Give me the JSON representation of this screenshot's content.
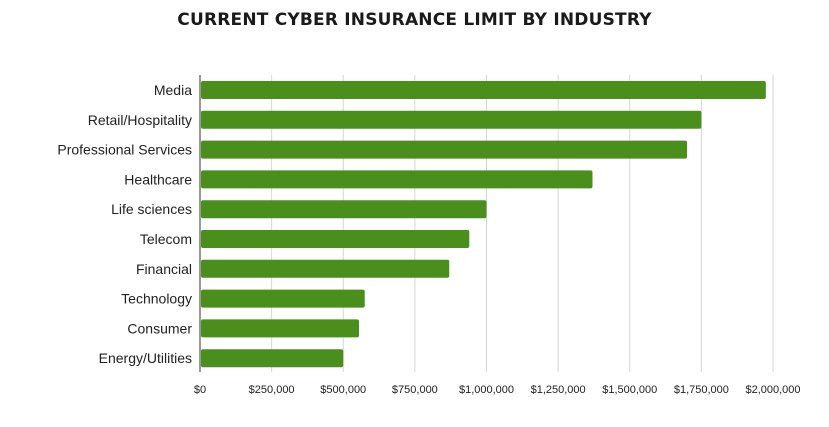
{
  "chart_data": {
    "type": "bar",
    "orientation": "horizontal",
    "title": "CURRENT CYBER INSURANCE LIMIT BY INDUSTRY",
    "categories": [
      "Media",
      "Retail/Hospitality",
      "Professional Services",
      "Healthcare",
      "Life sciences",
      "Telecom",
      "Financial",
      "Technology",
      "Consumer",
      "Energy/Utilities"
    ],
    "values": [
      1975000,
      1750000,
      1700000,
      1370000,
      1000000,
      940000,
      870000,
      575000,
      555000,
      500000
    ],
    "xlabel": "",
    "ylabel": "",
    "xlim": [
      0,
      2000000
    ],
    "xticks": [
      0,
      250000,
      500000,
      750000,
      1000000,
      1250000,
      1500000,
      1750000,
      2000000
    ],
    "xtick_labels": [
      "$0",
      "$250,000",
      "$500,000",
      "$750,000",
      "$1,000,000",
      "$1,250,000",
      "$1,500,000",
      "$1,750,000",
      "$2,000,000"
    ],
    "bar_color": "#4a8e1c",
    "grid": "vertical",
    "legend": "none"
  }
}
